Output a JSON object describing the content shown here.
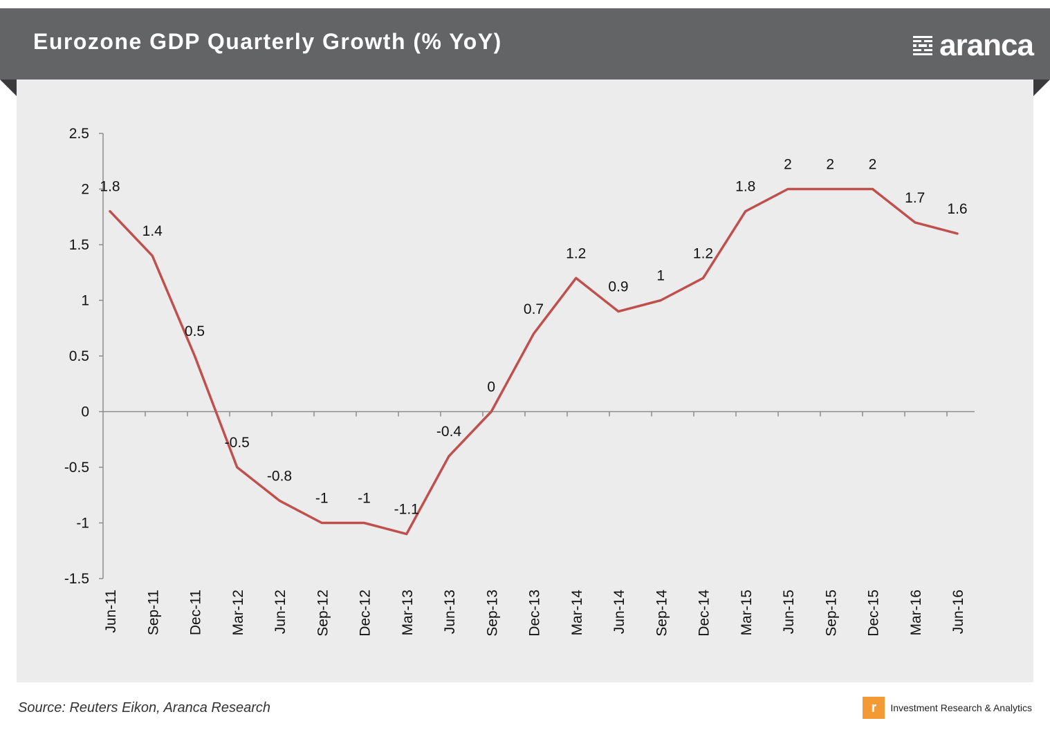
{
  "header": {
    "title": "Eurozone GDP Quarterly Growth (% YoY)",
    "brand_name": "aranca"
  },
  "footer": {
    "source": "Source: Reuters Eikon, Aranca Research",
    "tagline": "Investment Research & Analytics"
  },
  "colors": {
    "banner": "#636466",
    "panel": "#ececec",
    "line": "#c0504d",
    "footer_icon": "#f39a35"
  },
  "chart_data": {
    "type": "line",
    "title": "Eurozone GDP Quarterly Growth (% YoY)",
    "categories": [
      "Jun-11",
      "Sep-11",
      "Dec-11",
      "Mar-12",
      "Jun-12",
      "Sep-12",
      "Dec-12",
      "Mar-13",
      "Jun-13",
      "Sep-13",
      "Dec-13",
      "Mar-14",
      "Jun-14",
      "Sep-14",
      "Dec-14",
      "Mar-15",
      "Jun-15",
      "Sep-15",
      "Dec-15",
      "Mar-16",
      "Jun-16"
    ],
    "series": [
      {
        "values": [
          1.8,
          1.4,
          0.5,
          -0.5,
          -0.8,
          -1,
          -1,
          -1.1,
          -0.4,
          0,
          0.7,
          1.2,
          0.9,
          1,
          1.2,
          1.8,
          2,
          2,
          2,
          1.7,
          1.6
        ]
      }
    ],
    "data_labels": [
      "1.8",
      "1.4",
      "0.5",
      "-0.5",
      "-0.8",
      "-1",
      "-1",
      "-1.1",
      "-0.4",
      "0",
      "0.7",
      "1.2",
      "0.9",
      "1",
      "1.2",
      "1.8",
      "2",
      "2",
      "2",
      "1.7",
      "1.6"
    ],
    "ylim": [
      -1.5,
      2.5
    ],
    "yticks": [
      2.5,
      2,
      1.5,
      1,
      0.5,
      0,
      -0.5,
      -1,
      -1.5
    ],
    "ytick_labels": [
      "2.5",
      "2",
      "1.5",
      "1",
      "0.5",
      "0",
      "-0.5",
      "-1",
      "-1.5"
    ],
    "xlabel": "",
    "ylabel": "",
    "grid": false,
    "legend": "none"
  }
}
